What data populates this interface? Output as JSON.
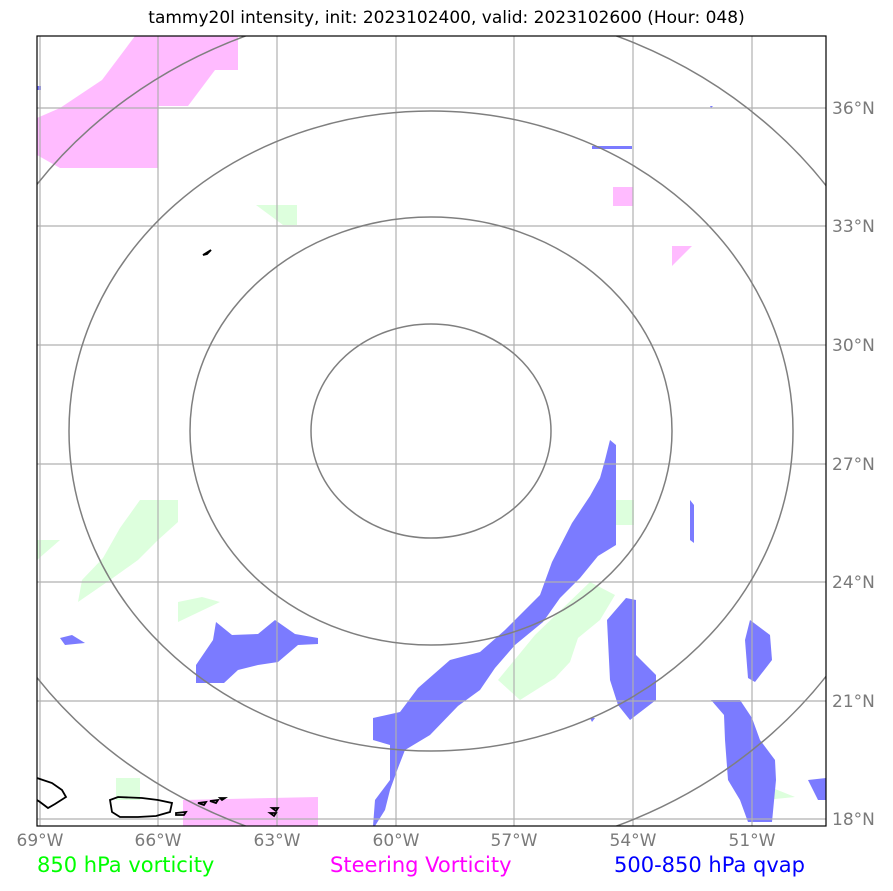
{
  "title": "tammy20l intensity, init: 2023102400, valid: 2023102600 (Hour: 048)",
  "lon_labels": [
    "69°W",
    "66°W",
    "63°W",
    "60°W",
    "57°W",
    "54°W",
    "51°W"
  ],
  "lat_labels": [
    "36°N",
    "33°N",
    "30°N",
    "27°N",
    "24°N",
    "21°N",
    "18°N"
  ],
  "legend": {
    "vort850": {
      "label": "850 hPa vorticity",
      "color": "#00ff00"
    },
    "steering": {
      "label": "Steering Vorticity",
      "color": "#ff00ff"
    },
    "qvap": {
      "label": "500-850 hPa qvap",
      "color": "#0000ff"
    }
  },
  "field_colors": {
    "vort850_fill": "#ddffdd",
    "steering_fill": "#ffbbff",
    "qvap_fill": "#7b7bff",
    "range_rings": "#7f7f7f",
    "gridlines": "#b0b0b0",
    "coastline": "#000000"
  }
}
